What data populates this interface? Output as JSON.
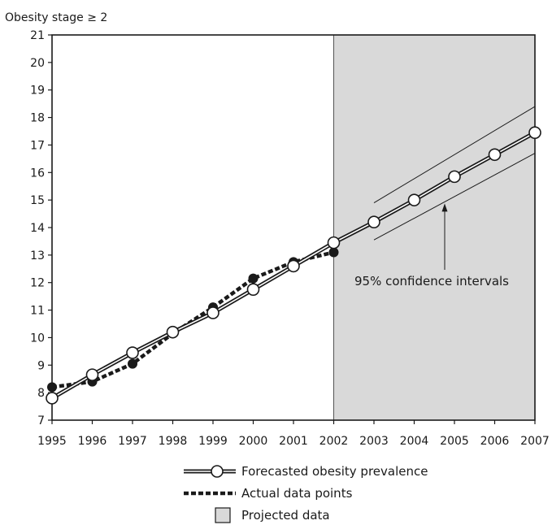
{
  "chart_data": {
    "type": "line",
    "y_axis_title": "Obesity stage ≥ 2",
    "x": [
      "1995",
      "1996",
      "1997",
      "1998",
      "1999",
      "2000",
      "2001",
      "2002",
      "2003",
      "2004",
      "2005",
      "2006",
      "2007"
    ],
    "ylim": [
      7,
      21
    ],
    "yticks": [
      7,
      8,
      9,
      10,
      11,
      12,
      13,
      14,
      15,
      16,
      17,
      18,
      19,
      20,
      21
    ],
    "projection_start": "2002",
    "projection_end": "2007",
    "series": [
      {
        "name": "Forecasted obesity prevalence",
        "style": "double-line-open-circles",
        "x": [
          "1995",
          "1996",
          "1997",
          "1998",
          "1999",
          "2000",
          "2001",
          "2002",
          "2003",
          "2004",
          "2005",
          "2006",
          "2007"
        ],
        "values": [
          7.8,
          8.65,
          9.45,
          10.2,
          10.9,
          11.75,
          12.6,
          13.45,
          14.2,
          15.0,
          15.85,
          16.65,
          17.45
        ]
      },
      {
        "name": "Actual data points",
        "style": "dashed-filled-circles",
        "x": [
          "1995",
          "1996",
          "1997",
          "1998",
          "1999",
          "2000",
          "2001",
          "2002"
        ],
        "values": [
          8.2,
          8.4,
          9.05,
          10.15,
          11.1,
          12.15,
          12.75,
          13.1
        ]
      }
    ],
    "confidence_interval": {
      "x_start": 2003,
      "x_end": 2007,
      "upper": [
        14.9,
        18.4
      ],
      "lower": [
        13.55,
        16.7
      ]
    },
    "annotations": [
      {
        "text": "95% confidence intervals"
      }
    ],
    "legend": [
      {
        "label": "Forecasted obesity prevalence",
        "kind": "forecast"
      },
      {
        "label": "Actual data points",
        "kind": "actual"
      },
      {
        "label": "Projected data",
        "kind": "projected"
      }
    ],
    "colors": {
      "projected_fill": "#d9d9d9",
      "line": "#1a1a1a",
      "marker_fill": "#ffffff"
    }
  }
}
